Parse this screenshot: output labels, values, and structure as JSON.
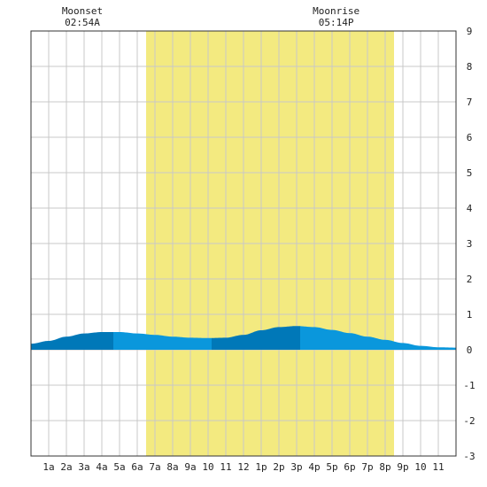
{
  "chart_data": {
    "type": "area",
    "title": "",
    "xlabel": "",
    "ylabel": "",
    "x_ticks": [
      "1a",
      "2a",
      "3a",
      "4a",
      "5a",
      "6a",
      "7a",
      "8a",
      "9a",
      "10",
      "11",
      "12",
      "1p",
      "2p",
      "3p",
      "4p",
      "5p",
      "6p",
      "7p",
      "8p",
      "9p",
      "10",
      "11"
    ],
    "ylim": [
      -3,
      9
    ],
    "y_ticks": [
      "9",
      "8",
      "7",
      "6",
      "5",
      "4",
      "3",
      "2",
      "1",
      "0",
      "-1",
      "-2",
      "-3"
    ],
    "xlim_hours": [
      0,
      24
    ],
    "daylight_hours": [
      6.5,
      20.5
    ],
    "moon_events": [
      {
        "label": "Moonset",
        "time": "02:54A",
        "hour": 2.9
      },
      {
        "label": "Moonrise",
        "time": "05:14P",
        "hour": 17.23
      }
    ],
    "series": [
      {
        "x_hours": [
          0,
          1,
          2,
          3,
          4,
          5,
          6,
          7,
          8,
          9,
          10,
          11,
          12,
          13,
          14,
          15,
          16,
          17,
          18,
          19,
          20,
          21,
          22,
          23,
          24
        ],
        "values": [
          0.17,
          0.25,
          0.37,
          0.46,
          0.5,
          0.5,
          0.46,
          0.42,
          0.37,
          0.34,
          0.33,
          0.34,
          0.42,
          0.55,
          0.64,
          0.67,
          0.64,
          0.56,
          0.47,
          0.37,
          0.28,
          0.19,
          0.11,
          0.07,
          0.06
        ]
      }
    ],
    "tide_segments": [
      {
        "start": 0,
        "end": 4.65,
        "trend": "rising"
      },
      {
        "start": 4.65,
        "end": 10.2,
        "trend": "falling"
      },
      {
        "start": 10.2,
        "end": 15.2,
        "trend": "rising"
      },
      {
        "start": 15.2,
        "end": 24,
        "trend": "falling"
      }
    ],
    "grid": true,
    "colors": {
      "daylight": "#f3ea80",
      "rising": "#0078b8",
      "falling": "#0a97dc",
      "grid": "#c8c8c8",
      "frame": "#333333"
    }
  }
}
